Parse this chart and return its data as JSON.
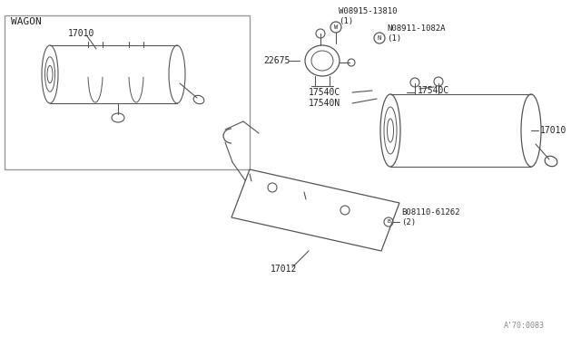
{
  "bg_color": "#ffffff",
  "line_color": "#555555",
  "text_color": "#222222",
  "diagram_code": "A'70:0083",
  "wagon_label": "WAGON",
  "parts": {
    "17010_wagon": "17010",
    "22675": "22675",
    "17540C_left": "17540C",
    "17540C_right": "17540C",
    "17540N": "17540N",
    "17010_main": "17010",
    "17012": "17012",
    "bolt_W": "W08915-13810\n(1)",
    "bolt_N": "N08911-1082A\n(1)",
    "bolt_B": "B08110-61262\n(2)"
  },
  "font_size_label": 6.5,
  "font_size_part": 7,
  "dpi": 100,
  "figsize": [
    6.4,
    3.72
  ]
}
